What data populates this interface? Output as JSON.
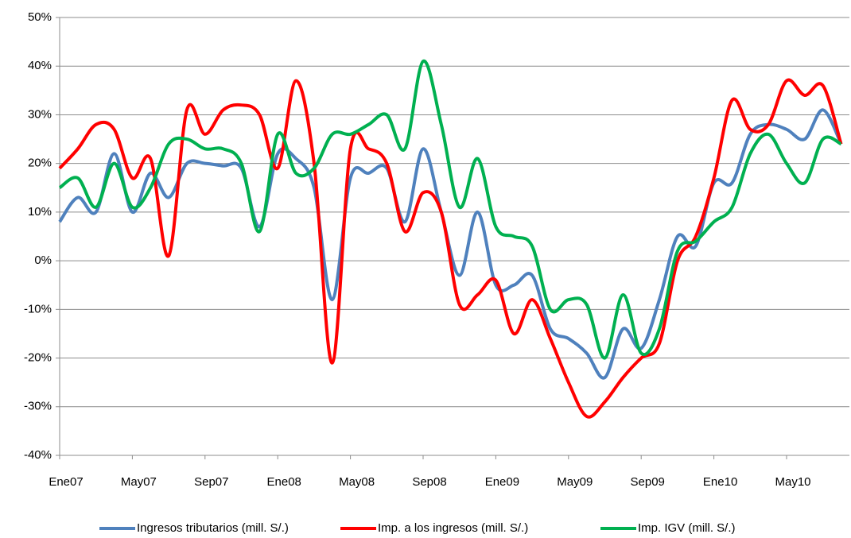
{
  "chart_data": {
    "type": "line",
    "categories": [
      "Ene07",
      null,
      null,
      null,
      "May07",
      null,
      null,
      null,
      "Sep07",
      null,
      null,
      null,
      "Ene08",
      null,
      null,
      null,
      "May08",
      null,
      null,
      null,
      "Sep08",
      null,
      null,
      null,
      "Ene09",
      null,
      null,
      null,
      "May09",
      null,
      null,
      null,
      "Sep09",
      null,
      null,
      null,
      "Ene10",
      null,
      null,
      null,
      "May10",
      null,
      null,
      null
    ],
    "series": [
      {
        "name": "Ingresos tributarios (mill. S/.)",
        "color": "#4f81bd",
        "values": [
          8,
          13,
          10,
          22,
          10,
          18,
          13,
          20,
          20,
          19.5,
          19,
          7,
          22,
          21,
          15,
          -8,
          17,
          18,
          19,
          8,
          23,
          10,
          -3,
          10,
          -5,
          -5,
          -3,
          -14,
          -16,
          -19,
          -24,
          -14,
          -18,
          -8,
          5,
          3,
          16,
          16,
          26,
          28,
          27,
          25,
          31,
          24
        ]
      },
      {
        "name": "Imp. a los ingresos (mill. S/.)",
        "color": "#ff0000",
        "values": [
          19,
          23,
          28,
          27,
          17,
          21,
          1,
          31,
          26,
          31,
          32,
          30,
          19,
          37,
          20,
          -21,
          23,
          23,
          20,
          6,
          14,
          10,
          -9,
          -7,
          -4,
          -15,
          -8,
          -16,
          -25,
          -32,
          -29,
          -24,
          -20,
          -17,
          0,
          5,
          17,
          33,
          27,
          28,
          37,
          34,
          36,
          24
        ]
      },
      {
        "name": "Imp. IGV (mill. S/.)",
        "color": "#00b050",
        "values": [
          15,
          17,
          11,
          20,
          11,
          15,
          24,
          25,
          23,
          23,
          20,
          6,
          26,
          18,
          19,
          26,
          26,
          28,
          30,
          23,
          41,
          28,
          11,
          21,
          7,
          5,
          3,
          -10,
          -8,
          -9,
          -20,
          -7,
          -19,
          -14,
          2,
          4,
          8,
          11,
          22,
          26,
          20,
          16,
          25,
          24
        ]
      }
    ],
    "ylim": [
      -40,
      50
    ],
    "yticks": [
      {
        "value": -40,
        "label": "-40%"
      },
      {
        "value": -30,
        "label": "-30%"
      },
      {
        "value": -20,
        "label": "-20%"
      },
      {
        "value": -10,
        "label": "-10%"
      },
      {
        "value": 0,
        "label": "0%"
      },
      {
        "value": 10,
        "label": "10%"
      },
      {
        "value": 20,
        "label": "20%"
      },
      {
        "value": 30,
        "label": "30%"
      },
      {
        "value": 40,
        "label": "40%"
      },
      {
        "value": 50,
        "label": "50%"
      }
    ],
    "grid": true,
    "legend": "bottom"
  }
}
